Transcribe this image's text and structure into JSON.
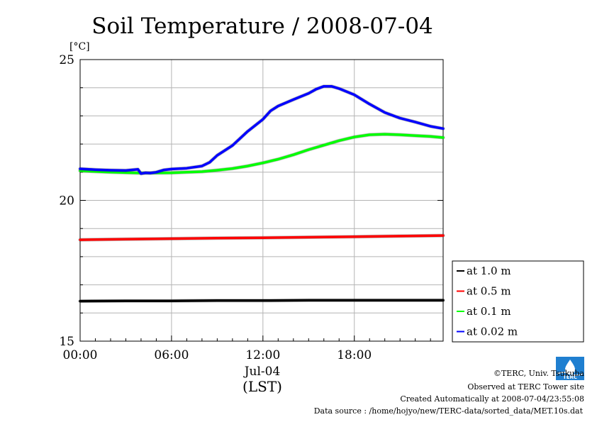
{
  "chart_data": {
    "type": "line",
    "title": "Soil Temperature / 2008-07-04",
    "ylabel": "[°C]",
    "xlabel": "(LST)",
    "date_label": "Jul-04",
    "ylim": [
      15,
      25
    ],
    "xlim_hours": [
      0,
      23.83
    ],
    "yticks": [
      {
        "value": 15,
        "label": "15"
      },
      {
        "value": 20,
        "label": "20"
      },
      {
        "value": 25,
        "label": "25"
      }
    ],
    "xticks": [
      {
        "value": 0,
        "label": "00:00"
      },
      {
        "value": 6,
        "label": "06:00"
      },
      {
        "value": 12,
        "label": "12:00"
      },
      {
        "value": 18,
        "label": "18:00"
      }
    ],
    "grid": true,
    "legend_position": "right",
    "series": [
      {
        "name": "at 1.0 m",
        "color": "#000000",
        "x": [
          0,
          3,
          6,
          9,
          12,
          15,
          18,
          21,
          23.83
        ],
        "y": [
          16.42,
          16.43,
          16.43,
          16.44,
          16.44,
          16.45,
          16.45,
          16.45,
          16.45
        ]
      },
      {
        "name": "at 0.5 m",
        "color": "#ff0000",
        "x": [
          0,
          3,
          6,
          9,
          12,
          15,
          18,
          21,
          23.83
        ],
        "y": [
          18.6,
          18.62,
          18.64,
          18.66,
          18.67,
          18.69,
          18.71,
          18.73,
          18.75
        ]
      },
      {
        "name": "at 0.1 m",
        "color": "#00ff00",
        "x": [
          0,
          2,
          4,
          6,
          7,
          8,
          9,
          10,
          11,
          12,
          13,
          14,
          15,
          16,
          17,
          18,
          19,
          20,
          21,
          22,
          23,
          23.83
        ],
        "y": [
          21.05,
          21.0,
          20.97,
          20.98,
          21.0,
          21.02,
          21.07,
          21.13,
          21.22,
          21.33,
          21.46,
          21.62,
          21.8,
          21.96,
          22.12,
          22.25,
          22.33,
          22.35,
          22.33,
          22.3,
          22.27,
          22.23
        ]
      },
      {
        "name": "at 0.02 m",
        "color": "#0000ff",
        "x": [
          0,
          1,
          2,
          3,
          3.8,
          4.0,
          4.3,
          4.6,
          5.0,
          5.5,
          6,
          7,
          8,
          8.5,
          9,
          10,
          11,
          12,
          12.5,
          13,
          14,
          15,
          15.5,
          16,
          16.5,
          17,
          18,
          19,
          20,
          21,
          22,
          23,
          23.83
        ],
        "y": [
          21.12,
          21.09,
          21.07,
          21.06,
          21.1,
          20.95,
          20.98,
          20.97,
          21.0,
          21.08,
          21.11,
          21.14,
          21.22,
          21.35,
          21.6,
          21.95,
          22.45,
          22.88,
          23.18,
          23.35,
          23.58,
          23.8,
          23.95,
          24.05,
          24.05,
          23.97,
          23.75,
          23.42,
          23.12,
          22.92,
          22.78,
          22.63,
          22.55
        ]
      }
    ]
  },
  "credits": {
    "copyright": "©TERC, Univ. Tsukuba",
    "site": "Observed at TERC Tower site",
    "created": "Created Automatically at 2008-07-04/23:55:08",
    "source": "Data source : /home/hojyo/new/TERC-data/sorted_data/MET.10s.dat"
  },
  "logo": {
    "text": "TERC"
  }
}
